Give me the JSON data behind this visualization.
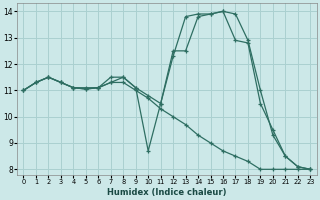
{
  "xlabel": "Humidex (Indice chaleur)",
  "bg_color": "#cce8e8",
  "grid_color": "#aad0d0",
  "line_color": "#2e6e62",
  "xlim": [
    -0.5,
    23.5
  ],
  "ylim": [
    7.8,
    14.3
  ],
  "yticks": [
    8,
    9,
    10,
    11,
    12,
    13,
    14
  ],
  "xticks": [
    0,
    1,
    2,
    3,
    4,
    5,
    6,
    7,
    8,
    9,
    10,
    11,
    12,
    13,
    14,
    15,
    16,
    17,
    18,
    19,
    20,
    21,
    22,
    23
  ],
  "line1_x": [
    0,
    1,
    2,
    3,
    4,
    5,
    6,
    7,
    8,
    9,
    10,
    11,
    12,
    13,
    14,
    15,
    16,
    17,
    18,
    19,
    20,
    21,
    22,
    23
  ],
  "line1_y": [
    11.0,
    11.3,
    11.5,
    11.3,
    11.1,
    11.05,
    11.1,
    11.3,
    11.5,
    11.1,
    10.8,
    10.5,
    12.5,
    12.5,
    13.8,
    13.9,
    14.0,
    12.9,
    12.8,
    10.5,
    9.5,
    8.5,
    8.1,
    8.0
  ],
  "line2_x": [
    0,
    1,
    2,
    3,
    4,
    5,
    6,
    7,
    8,
    9,
    10,
    11,
    12,
    13,
    14,
    15,
    16,
    17,
    18,
    19,
    20,
    21,
    22,
    23
  ],
  "line2_y": [
    11.0,
    11.3,
    11.5,
    11.3,
    11.1,
    11.1,
    11.1,
    11.5,
    11.5,
    11.1,
    8.7,
    10.5,
    12.3,
    13.8,
    13.9,
    13.9,
    14.0,
    13.9,
    12.9,
    11.0,
    9.3,
    8.5,
    8.1,
    8.0
  ],
  "line3_x": [
    0,
    1,
    2,
    3,
    4,
    5,
    6,
    7,
    8,
    9,
    10,
    11,
    12,
    13,
    14,
    15,
    16,
    17,
    18,
    19,
    20,
    21,
    22,
    23
  ],
  "line3_y": [
    11.0,
    11.3,
    11.5,
    11.3,
    11.1,
    11.05,
    11.1,
    11.3,
    11.3,
    11.0,
    10.7,
    10.3,
    10.0,
    9.7,
    9.3,
    9.0,
    8.7,
    8.5,
    8.3,
    8.0,
    8.0,
    8.0,
    8.0,
    8.0
  ]
}
